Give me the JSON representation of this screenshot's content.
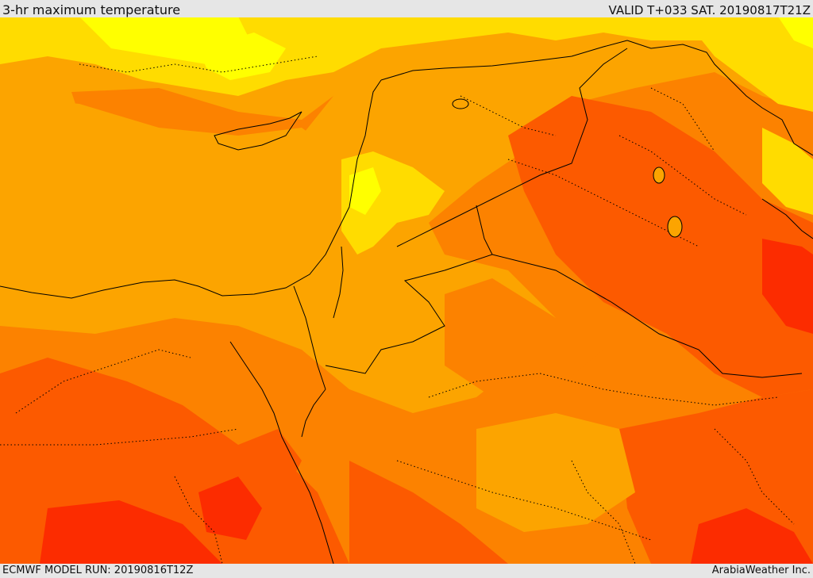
{
  "header": {
    "title": "3-hr maximum temperature",
    "valid_time": "VALID T+033 SAT. 20190817T21Z"
  },
  "footer": {
    "model_run": "ECMWF MODEL RUN: 20190816T12Z",
    "credit": "ArabiaWeather Inc."
  },
  "map": {
    "field": "3-hr maximum temperature",
    "palette": {
      "coolest": "#ffff00",
      "cool": "#ffdc00",
      "mild": "#fca400",
      "warm": "#fc8200",
      "hot": "#fc5a00",
      "hottest": "#fc2c00"
    },
    "border_color": "#000000"
  }
}
